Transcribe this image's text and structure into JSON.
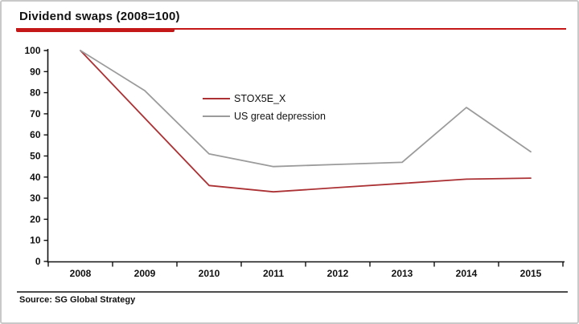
{
  "title": "Dividend swaps (2008=100)",
  "source": "Source: SG Global Strategy",
  "colors": {
    "accent_red": "#c41717",
    "series_stox": "#ab3134",
    "series_depression": "#9b9b9b",
    "axis": "#111111",
    "separator": "#4d4d4d"
  },
  "legend": {
    "items": [
      {
        "label": "STOX5E_X",
        "color": "#ab3134"
      },
      {
        "label": "US great depression",
        "color": "#9b9b9b"
      }
    ]
  },
  "chart_data": {
    "type": "line",
    "title": "Dividend swaps (2008=100)",
    "xlabel": "",
    "ylabel": "",
    "categories": [
      "2008",
      "2009",
      "2010",
      "2011",
      "2012",
      "2013",
      "2014",
      "2015"
    ],
    "series": [
      {
        "name": "STOX5E_X",
        "color": "#ab3134",
        "values": [
          100,
          68,
          36,
          33,
          35,
          37,
          39,
          39.5
        ]
      },
      {
        "name": "US great depression",
        "color": "#9b9b9b",
        "values": [
          100,
          81,
          51,
          45,
          46,
          47,
          73,
          52
        ]
      }
    ],
    "ylim": [
      0,
      100
    ],
    "y_ticks": [
      0,
      10,
      20,
      30,
      40,
      50,
      60,
      70,
      80,
      90,
      100
    ],
    "grid": false,
    "legend_position": "inside upper-left-center"
  }
}
